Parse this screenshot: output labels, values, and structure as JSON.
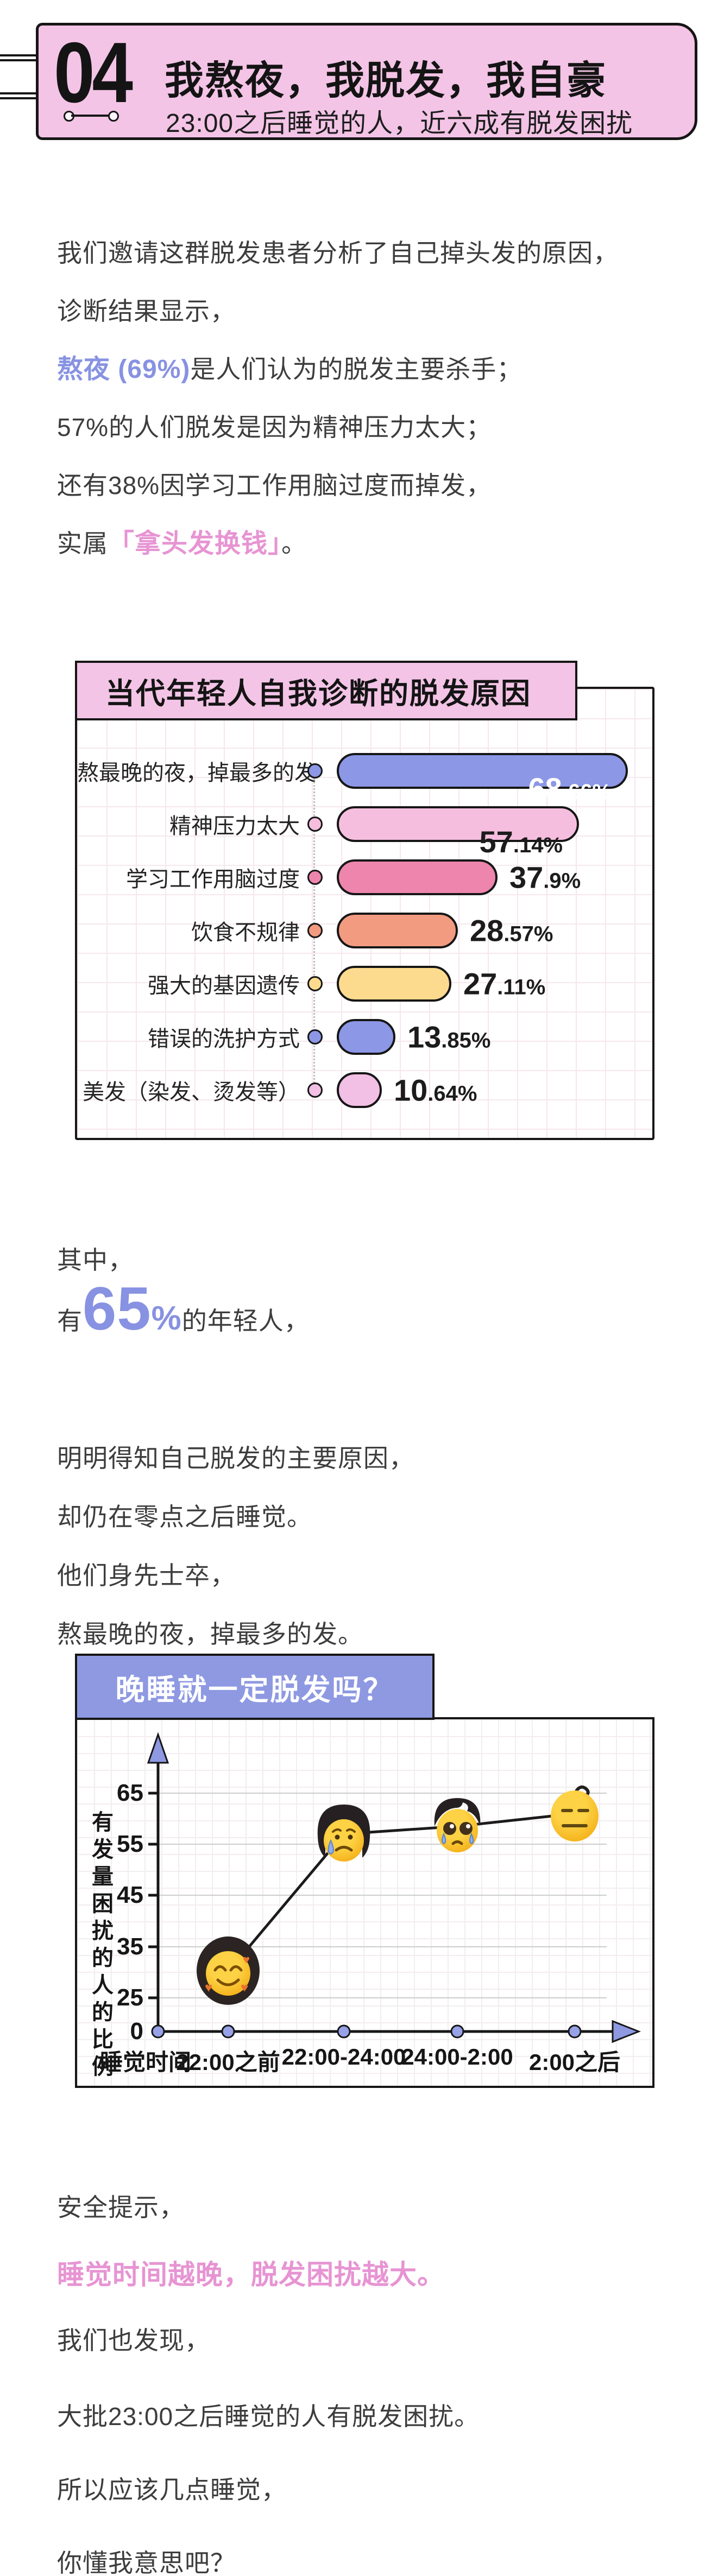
{
  "colors": {
    "header_pink": "#f3c4e6",
    "badge_blue": "#8e99e2",
    "accent_blue": "#8792e2",
    "accent_pink": "#e794d3",
    "text_dark": "#3d3d3d",
    "border_dark": "#161616"
  },
  "header": {
    "number": "04",
    "title": "我熬夜，我脱发，我自豪",
    "subtitle": "23:00之后睡觉的人，近六成有脱发困扰"
  },
  "intro": {
    "l1": "我们邀请这群脱发患者分析了自己掉头发的原因，",
    "l2": "诊断结果显示，",
    "l3_hl": "熬夜 (69%)",
    "l3": "是人们认为的脱发主要杀手；",
    "l4": "57%的人们脱发是因为精神压力太大；",
    "l5": "还有38%因学习工作用脑过度而掉发，",
    "l6_pre": "实属",
    "l6_hl": "「拿头发换钱」",
    "l6_post": "。"
  },
  "middle": {
    "l1": "其中，",
    "l2_pre": "有",
    "l2_big": "65",
    "l2_pct": "%",
    "l2_post": "的年轻人，",
    "l3": "明明得知自己脱发的主要原因，",
    "l4": "却仍在零点之后睡觉。",
    "l5": "他们身先士卒，",
    "l6": "熬最晚的夜，掉最多的发。"
  },
  "footer": {
    "l1": "安全提示，",
    "l2": "睡觉时间越晚，脱发困扰越大。",
    "l3": "我们也发现，",
    "l4": "大批23:00之后睡觉的人有脱发困扰。",
    "l5": "所以应该几点睡觉，",
    "l6": "你懂我意思吧？"
  },
  "chart_data": [
    {
      "type": "bar",
      "orientation": "horizontal",
      "title": "当代年轻人自我诊断的脱发原因",
      "xlim": [
        0,
        75
      ],
      "grid": true,
      "rows": [
        {
          "label": "熬最晚的夜，掉最多的发",
          "value": 68.66,
          "value_int": "68",
          "value_frac": ".66%",
          "color": "#8c97e6",
          "text_inside": true,
          "text_color": "#ffffff"
        },
        {
          "label": "精神压力太大",
          "value": 57.14,
          "value_int": "57",
          "value_frac": ".14%",
          "color": "#f6bede",
          "text_inside": true,
          "text_color": "#1c1c1c"
        },
        {
          "label": "学习工作用脑过度",
          "value": 37.9,
          "value_int": "37",
          "value_frac": ".9%",
          "color": "#ee85ad",
          "text_inside": false,
          "text_color": "#1c1c1c"
        },
        {
          "label": "饮食不规律",
          "value": 28.57,
          "value_int": "28",
          "value_frac": ".57%",
          "color": "#f29b81",
          "text_inside": false,
          "text_color": "#1c1c1c"
        },
        {
          "label": "强大的基因遗传",
          "value": 27.11,
          "value_int": "27",
          "value_frac": ".11%",
          "color": "#fcdb8e",
          "text_inside": false,
          "text_color": "#1c1c1c"
        },
        {
          "label": "错误的洗护方式",
          "value": 13.85,
          "value_int": "13",
          "value_frac": ".85%",
          "color": "#8c97e6",
          "text_inside": false,
          "text_color": "#1c1c1c"
        },
        {
          "label": "美发（染发、烫发等）",
          "value": 10.64,
          "value_int": "10",
          "value_frac": ".64%",
          "color": "#f2bfe5",
          "text_inside": false,
          "text_color": "#1c1c1c"
        }
      ]
    },
    {
      "type": "line",
      "title": "晚睡就一定脱发吗？",
      "ylabel": "有发量困扰的人的比例",
      "xlabel": "睡觉时间",
      "categories": [
        "22:00之前",
        "22:00-24:00",
        "24:00-2:00",
        "2:00之后"
      ],
      "values": [
        30,
        57,
        58.5,
        61
      ],
      "ytick_labels": [
        "65",
        "55",
        "45",
        "35",
        "25"
      ],
      "yticks": [
        65,
        55,
        45,
        35,
        25
      ],
      "origin_label": "0",
      "ylim": [
        0,
        70
      ],
      "grid": true,
      "legend": "none",
      "point_icons": [
        "loving-face-full-hair",
        "sad-tear-face-bob-hair",
        "pleading-face-thin-hair",
        "expressionless-face-bald-curl"
      ]
    }
  ]
}
